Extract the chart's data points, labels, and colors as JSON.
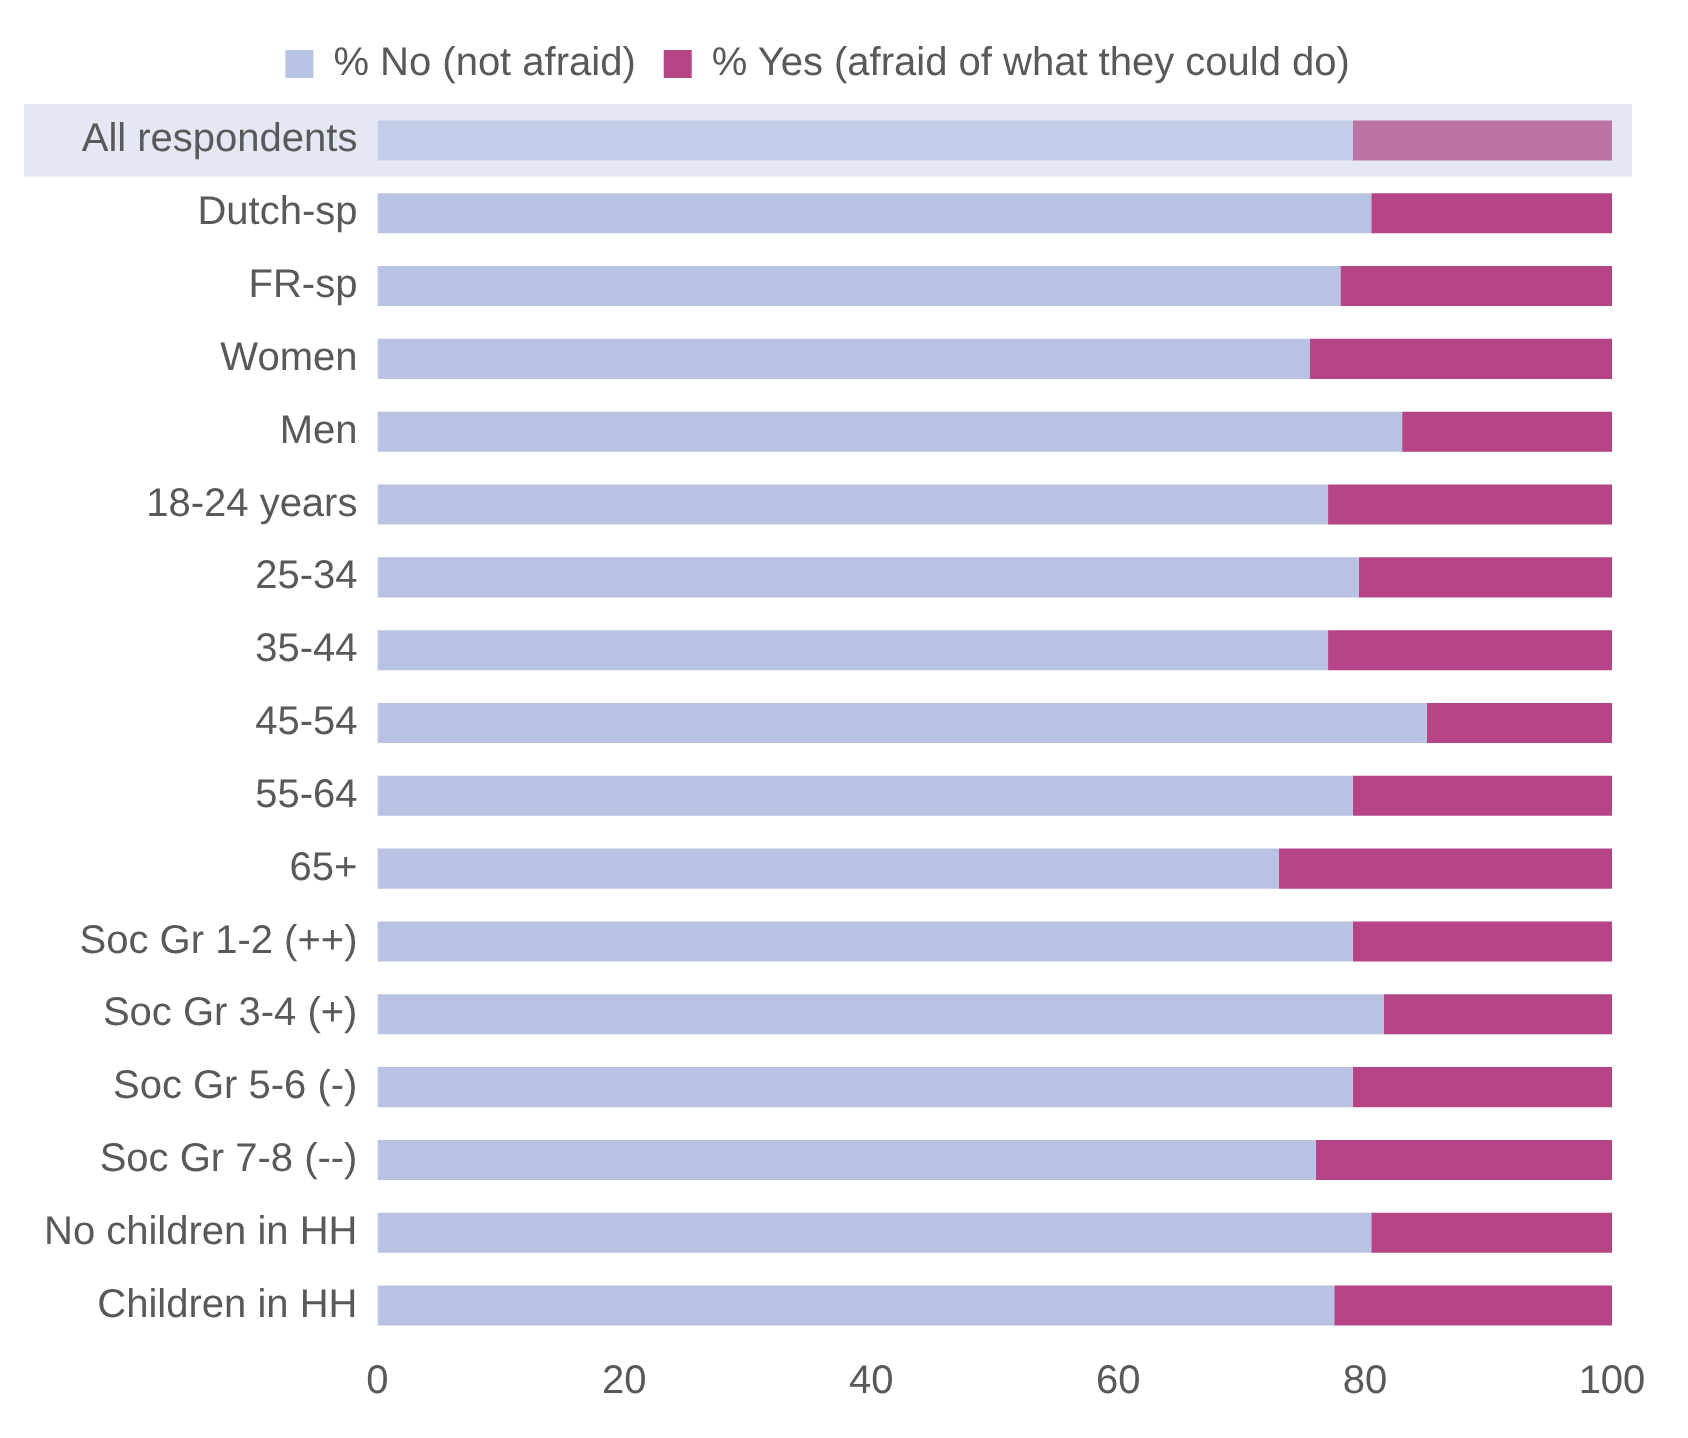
{
  "chart_data": {
    "type": "bar",
    "orientation": "horizontal",
    "stacked": true,
    "categories": [
      "All respondents",
      "Dutch-sp",
      "FR-sp",
      "Women",
      "Men",
      "18-24 years",
      "25-34",
      "35-44",
      "45-54",
      "55-64",
      "65+",
      "Soc Gr 1-2 (++)",
      "Soc Gr 3-4 (+)",
      "Soc Gr 5-6 (-)",
      "Soc Gr 7-8 (--)",
      "No children in HH",
      "Children in HH"
    ],
    "series": [
      {
        "name": "% No (not afraid)",
        "color": "#b8c3e3",
        "colors": [
          "#c2cbe8",
          "#b8c3e3",
          "#b8c3e3",
          "#b8c3e3",
          "#b8c3e3",
          "#b8c3e3",
          "#b8c3e3",
          "#b8c3e3",
          "#b8c3e3",
          "#b8c3e3",
          "#b8c3e3",
          "#b8c3e3",
          "#b8c3e3",
          "#b8c3e3",
          "#b8c3e3",
          "#b8c3e3",
          "#b8c3e3"
        ],
        "values": [
          79,
          80.5,
          78,
          75.5,
          83,
          77,
          79.5,
          77,
          85,
          79,
          73,
          79,
          81.5,
          79,
          76,
          80.5,
          77.5
        ]
      },
      {
        "name": "% Yes (afraid of what they could do)",
        "color": "#b54586",
        "colors": [
          "#bb73a6",
          "#b54586",
          "#b54586",
          "#b54586",
          "#b54586",
          "#b54586",
          "#b54586",
          "#b54586",
          "#b54586",
          "#b54586",
          "#b54586",
          "#b54586",
          "#b54586",
          "#b54586",
          "#b54586",
          "#b54586",
          "#b54586"
        ],
        "values": [
          21,
          19.5,
          22,
          24.5,
          17,
          23,
          20.5,
          23,
          15,
          21,
          27,
          21,
          18.5,
          21,
          24,
          19.5,
          22.5
        ]
      }
    ],
    "bands": [
      {
        "axis": "y",
        "from": "All respondents",
        "to": "All respondents",
        "color": "#e4e8f4"
      }
    ],
    "xlim": [
      0,
      100
    ],
    "xticks": [
      0,
      20,
      40,
      60,
      80,
      100
    ],
    "grid": false,
    "legend": "top"
  }
}
